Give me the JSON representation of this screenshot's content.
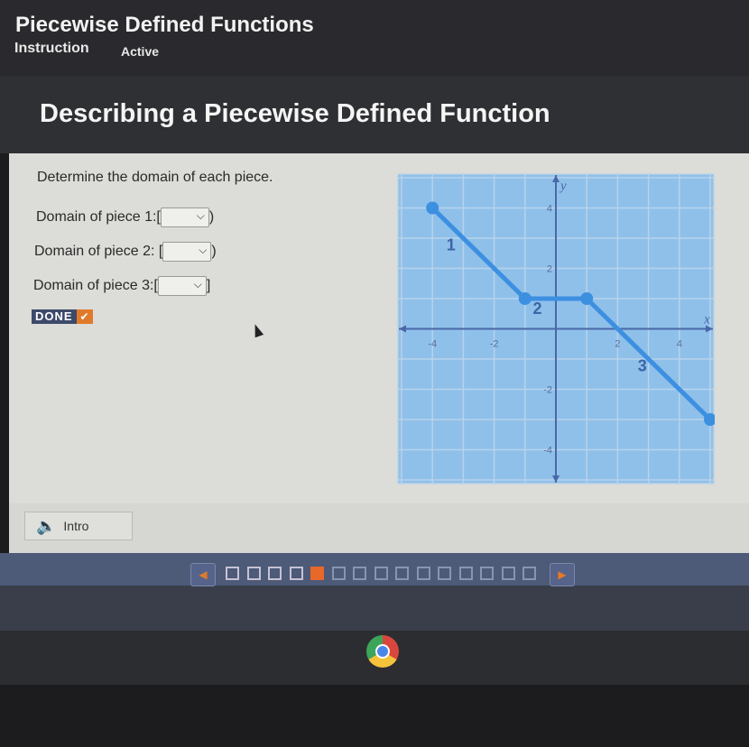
{
  "header": {
    "title": "Piecewise Defined Functions",
    "tabs": [
      "Instruction",
      "Active"
    ]
  },
  "page_title": "Describing a Piecewise Defined Function",
  "prompt": "Determine the domain of each piece.",
  "fields": [
    {
      "label": "Domain of piece 1:",
      "open": "[",
      "value": "",
      "close": ")"
    },
    {
      "label": "Domain of piece 2:",
      "open": "[",
      "value": "",
      "close": ")"
    },
    {
      "label": "Domain of piece 3:",
      "open": "[",
      "value": "",
      "close": "]"
    }
  ],
  "done_label": "DONE",
  "intro_label": "Intro",
  "progress": {
    "total": 15,
    "completed": 4,
    "current": 5
  },
  "graph": {
    "x_label": "x",
    "y_label": "y",
    "x_ticks": [
      "-4",
      "-2",
      "2",
      "4"
    ],
    "y_ticks": [
      "4",
      "2",
      "-2",
      "-4"
    ],
    "xlim": [
      -5,
      5
    ],
    "ylim": [
      -5,
      5
    ],
    "line_color": "#3d8fe0",
    "pieces": [
      {
        "label": "1",
        "points": [
          [
            -4,
            4
          ],
          [
            -1,
            1
          ]
        ]
      },
      {
        "label": "2",
        "points": [
          [
            -1,
            1
          ],
          [
            1,
            1
          ]
        ]
      },
      {
        "label": "3",
        "points": [
          [
            1,
            1
          ],
          [
            5,
            -3
          ]
        ]
      }
    ]
  }
}
